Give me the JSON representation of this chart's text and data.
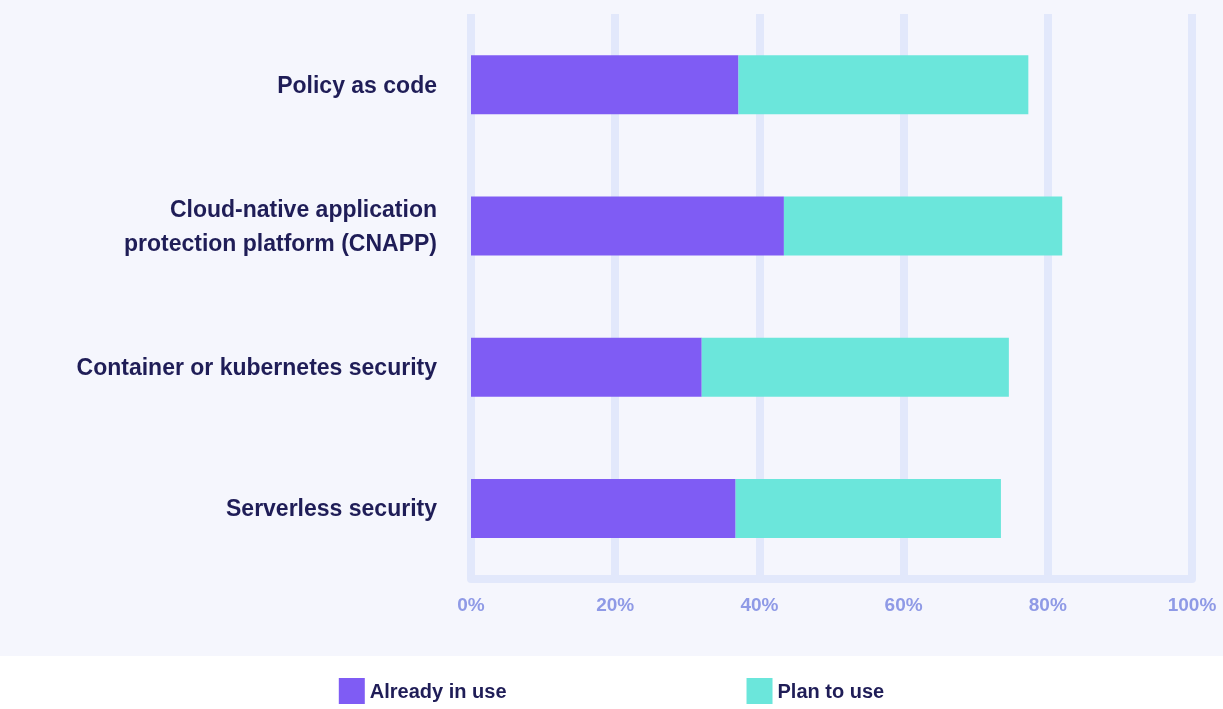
{
  "chart_data": {
    "type": "bar",
    "orientation": "horizontal",
    "stacked": true,
    "categories": [
      "Policy as code",
      "Cloud-native application\nprotection platform (CNAPP)",
      "Container or kubernetes security",
      "Serverless security"
    ],
    "series": [
      {
        "name": "Already in use",
        "color": "#7f5cf4",
        "values": [
          37.1,
          43.4,
          32.0,
          36.7
        ]
      },
      {
        "name": "Plan to use",
        "color": "#6be6db",
        "values": [
          40.2,
          38.6,
          42.6,
          36.8
        ]
      }
    ],
    "xlim": [
      0,
      100
    ],
    "xticks": [
      {
        "value": 0,
        "label": "0%"
      },
      {
        "value": 20,
        "label": "20%"
      },
      {
        "value": 40,
        "label": "40%"
      },
      {
        "value": 60,
        "label": "60%"
      },
      {
        "value": 80,
        "label": "80%"
      },
      {
        "value": 100,
        "label": "100%"
      }
    ],
    "grid": "x",
    "legend": "bottom"
  }
}
